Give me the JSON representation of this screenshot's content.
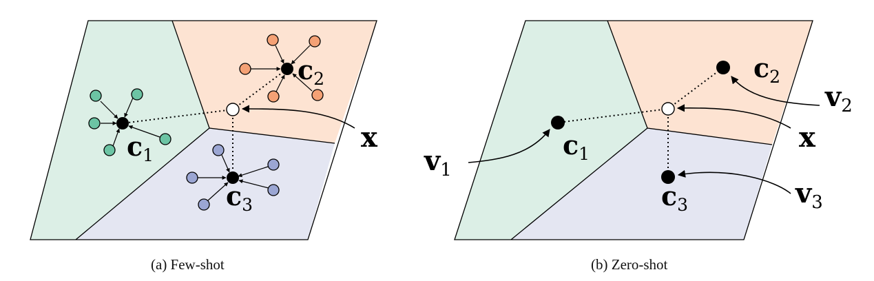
{
  "figure": {
    "panels": [
      {
        "id": "a",
        "caption": "(a) Few-shot",
        "regions": [
          "green",
          "orange",
          "blue"
        ],
        "prototypes": [
          {
            "label": "c",
            "sub": "1",
            "cls": "green"
          },
          {
            "label": "c",
            "sub": "2",
            "cls": "orange"
          },
          {
            "label": "c",
            "sub": "3",
            "cls": "blue"
          }
        ],
        "query": {
          "label": "x"
        },
        "support_points_per_class": 5
      },
      {
        "id": "b",
        "caption": "(b) Zero-shot",
        "regions": [
          "green",
          "orange",
          "blue"
        ],
        "prototypes": [
          {
            "label": "c",
            "sub": "1",
            "cls": "green"
          },
          {
            "label": "c",
            "sub": "2",
            "cls": "orange"
          },
          {
            "label": "c",
            "sub": "3",
            "cls": "blue"
          }
        ],
        "query": {
          "label": "x"
        },
        "class_vectors": [
          {
            "label": "v",
            "sub": "1"
          },
          {
            "label": "v",
            "sub": "2"
          },
          {
            "label": "v",
            "sub": "3"
          }
        ]
      }
    ]
  },
  "colors": {
    "green_region": "#dcefe6",
    "orange_region": "#fde3d2",
    "blue_region": "#e4e6f2",
    "green_point": "#6cc4a4",
    "orange_point": "#f4a175",
    "blue_point": "#9ba6d3",
    "ink": "#000000"
  }
}
